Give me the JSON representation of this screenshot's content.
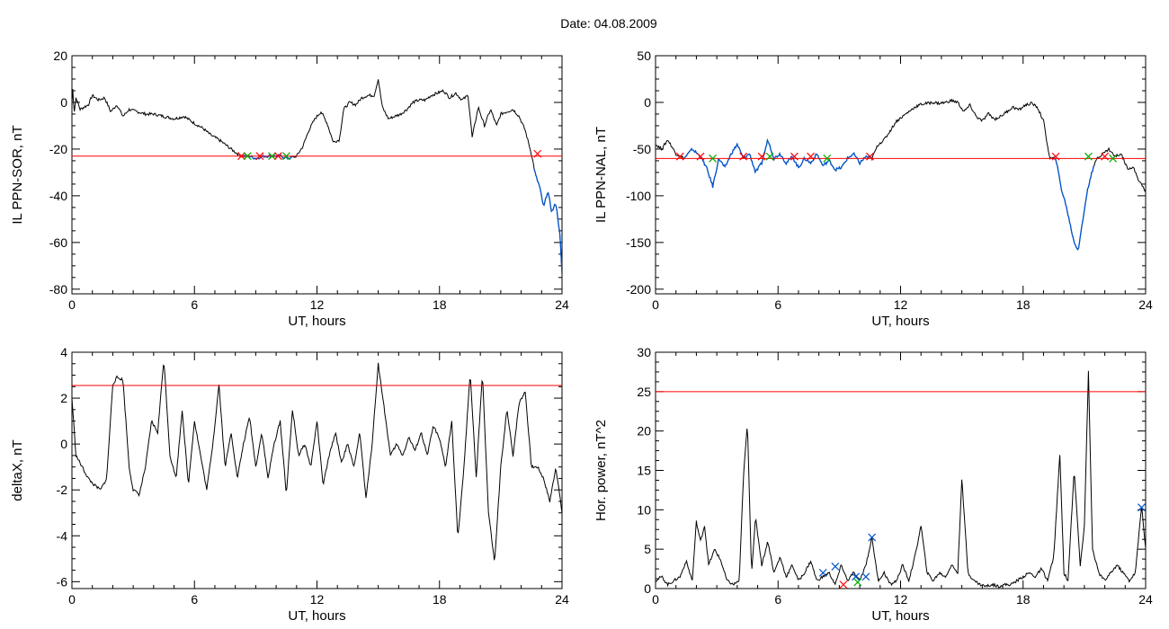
{
  "header": {
    "title": "Date:  04.08.2009"
  },
  "colors": {
    "trace": "#000000",
    "threshold": "#ff0000",
    "marker_x": "#ff0000",
    "marker_blue": "#0055cc",
    "marker_green": "#00aa00"
  },
  "chart_data": [
    {
      "type": "line",
      "title": "",
      "xlabel": "UT, hours",
      "ylabel": "IL PPN-SOR, nT",
      "xlim": [
        0,
        24
      ],
      "ylim": [
        -82,
        20
      ],
      "xticks": [
        0,
        6,
        12,
        18,
        24
      ],
      "yticks": [
        20,
        0,
        -20,
        -40,
        -60,
        -80
      ],
      "threshold": -23,
      "series": [
        {
          "x": [
            0,
            0.05,
            0.1,
            0.2,
            0.4,
            0.8,
            1.0,
            1.3,
            1.6,
            1.9,
            2.2,
            2.5,
            2.8,
            3.2,
            3.6,
            4.0,
            4.5,
            5.0,
            5.5,
            6.0,
            6.4,
            6.8,
            7.2,
            7.5,
            7.8,
            8.1,
            8.4,
            8.7,
            9.0,
            9.4,
            9.8,
            10.2,
            10.6,
            11.0,
            11.3,
            11.6,
            11.9,
            12.2,
            12.5,
            12.8,
            13.1,
            13.3,
            13.6,
            13.9,
            14.2,
            14.5,
            14.8,
            15.0,
            15.2,
            15.5,
            15.8,
            16.1,
            16.4,
            16.7,
            17.0,
            17.3,
            17.6,
            17.9,
            18.2,
            18.5,
            18.8,
            19.1,
            19.4,
            19.6,
            19.9,
            20.2,
            20.5,
            20.8,
            21.0,
            21.3,
            21.6,
            21.9,
            22.2,
            22.5,
            22.7,
            22.9,
            23.1,
            23.3,
            23.5,
            23.7,
            23.9,
            24.0
          ],
          "y": [
            0,
            7,
            -5,
            2,
            -3,
            -1,
            3,
            1,
            2,
            -4,
            -1,
            -6,
            -3,
            -4,
            -5,
            -5,
            -6,
            -7,
            -6,
            -9,
            -11,
            -14,
            -16,
            -18,
            -20,
            -22,
            -23,
            -23,
            -24,
            -23,
            -23,
            -23,
            -24,
            -23,
            -19,
            -12,
            -7,
            -4,
            -9,
            -17,
            -16,
            -3,
            0,
            -1,
            2,
            3,
            3,
            10,
            -2,
            -7,
            -6,
            -5,
            -3,
            0,
            1,
            1,
            3,
            4,
            5,
            2,
            4,
            1,
            3,
            -15,
            -2,
            -10,
            -3,
            -10,
            -5,
            -4,
            -3,
            -6,
            -12,
            -22,
            -31,
            -36,
            -45,
            -38,
            -47,
            -43,
            -57,
            -74
          ]
        }
      ],
      "highlight_segments": [
        [
          8.2,
          10.8
        ],
        [
          22.6,
          24.0
        ]
      ],
      "markers": [
        {
          "x": 8.3,
          "y": -23,
          "color": "#ff0000"
        },
        {
          "x": 8.6,
          "y": -23,
          "color": "#00aa00"
        },
        {
          "x": 9.2,
          "y": -23,
          "color": "#ff0000"
        },
        {
          "x": 9.8,
          "y": -23,
          "color": "#00aa00"
        },
        {
          "x": 10.1,
          "y": -23,
          "color": "#ff0000"
        },
        {
          "x": 10.5,
          "y": -23,
          "color": "#00aa00"
        },
        {
          "x": 22.8,
          "y": -22,
          "color": "#ff0000"
        }
      ]
    },
    {
      "type": "line",
      "title": "",
      "xlabel": "UT, hours",
      "ylabel": "IL PPN-NAL, nT",
      "xlim": [
        0,
        24
      ],
      "ylim": [
        -205,
        50
      ],
      "xticks": [
        0,
        6,
        12,
        18,
        24
      ],
      "yticks": [
        50,
        0,
        -50,
        -100,
        -150,
        -200
      ],
      "threshold": -60,
      "series": [
        {
          "x": [
            0,
            0.3,
            0.6,
            1.0,
            1.4,
            1.8,
            2.2,
            2.5,
            2.8,
            3.1,
            3.4,
            3.7,
            4.0,
            4.3,
            4.6,
            4.9,
            5.2,
            5.5,
            5.8,
            6.1,
            6.4,
            6.7,
            7.0,
            7.3,
            7.6,
            7.9,
            8.2,
            8.5,
            8.8,
            9.1,
            9.4,
            9.7,
            10.0,
            10.3,
            10.6,
            10.9,
            11.2,
            11.5,
            11.8,
            12.1,
            12.4,
            12.7,
            13.0,
            13.3,
            13.6,
            13.9,
            14.2,
            14.5,
            14.8,
            15.1,
            15.4,
            15.7,
            16.0,
            16.3,
            16.6,
            16.9,
            17.2,
            17.5,
            17.8,
            18.1,
            18.4,
            18.7,
            19.0,
            19.3,
            19.6,
            19.9,
            20.1,
            20.3,
            20.5,
            20.7,
            20.9,
            21.1,
            21.3,
            21.6,
            21.9,
            22.2,
            22.5,
            22.8,
            23.1,
            23.4,
            23.7,
            24.0
          ],
          "y": [
            -45,
            -50,
            -40,
            -55,
            -60,
            -50,
            -58,
            -70,
            -90,
            -60,
            -70,
            -55,
            -45,
            -60,
            -55,
            -75,
            -65,
            -40,
            -60,
            -55,
            -65,
            -58,
            -70,
            -60,
            -65,
            -55,
            -68,
            -62,
            -72,
            -70,
            -60,
            -55,
            -65,
            -58,
            -60,
            -45,
            -40,
            -30,
            -20,
            -15,
            -10,
            -5,
            -2,
            -1,
            0,
            -1,
            0,
            2,
            0,
            -10,
            -3,
            -15,
            -20,
            -12,
            -18,
            -15,
            -10,
            -5,
            -8,
            -3,
            -1,
            -5,
            -20,
            -60,
            -60,
            -95,
            -110,
            -130,
            -150,
            -158,
            -130,
            -100,
            -80,
            -60,
            -55,
            -50,
            -58,
            -55,
            -70,
            -70,
            -85,
            -95
          ]
        }
      ],
      "highlight_segments": [
        [
          1.4,
          10.6
        ],
        [
          19.5,
          21.5
        ]
      ],
      "markers": [
        {
          "x": 1.2,
          "y": -58,
          "color": "#ff0000"
        },
        {
          "x": 2.2,
          "y": -58,
          "color": "#ff0000"
        },
        {
          "x": 2.8,
          "y": -60,
          "color": "#00aa00"
        },
        {
          "x": 4.3,
          "y": -58,
          "color": "#ff0000"
        },
        {
          "x": 5.2,
          "y": -58,
          "color": "#ff0000"
        },
        {
          "x": 5.6,
          "y": -58,
          "color": "#00aa00"
        },
        {
          "x": 6.8,
          "y": -58,
          "color": "#ff0000"
        },
        {
          "x": 7.6,
          "y": -58,
          "color": "#ff0000"
        },
        {
          "x": 8.4,
          "y": -60,
          "color": "#00aa00"
        },
        {
          "x": 10.5,
          "y": -58,
          "color": "#ff0000"
        },
        {
          "x": 19.6,
          "y": -58,
          "color": "#ff0000"
        },
        {
          "x": 21.2,
          "y": -58,
          "color": "#00aa00"
        },
        {
          "x": 22.0,
          "y": -58,
          "color": "#ff0000"
        },
        {
          "x": 22.4,
          "y": -60,
          "color": "#00aa00"
        }
      ]
    },
    {
      "type": "line",
      "title": "",
      "xlabel": "UT, hours",
      "ylabel": "deltaX, nT",
      "xlim": [
        0,
        24
      ],
      "ylim": [
        -6.3,
        4
      ],
      "xticks": [
        0,
        6,
        12,
        18,
        24
      ],
      "yticks": [
        4,
        2,
        0,
        -2,
        -4,
        -6
      ],
      "threshold": 2.55,
      "series": [
        {
          "x": [
            0,
            0.2,
            0.5,
            0.8,
            1.1,
            1.4,
            1.7,
            2.0,
            2.2,
            2.5,
            2.8,
            3.0,
            3.3,
            3.6,
            3.9,
            4.2,
            4.5,
            4.8,
            5.1,
            5.4,
            5.7,
            6.0,
            6.3,
            6.6,
            6.9,
            7.2,
            7.5,
            7.8,
            8.1,
            8.4,
            8.7,
            9.0,
            9.3,
            9.6,
            9.9,
            10.2,
            10.5,
            10.8,
            11.1,
            11.4,
            11.7,
            12.0,
            12.3,
            12.6,
            12.9,
            13.2,
            13.5,
            13.8,
            14.1,
            14.4,
            14.7,
            15.0,
            15.3,
            15.6,
            15.9,
            16.2,
            16.5,
            16.8,
            17.1,
            17.4,
            17.7,
            18.0,
            18.3,
            18.6,
            18.9,
            19.2,
            19.5,
            19.8,
            20.1,
            20.4,
            20.7,
            21.0,
            21.3,
            21.6,
            21.9,
            22.2,
            22.5,
            22.8,
            23.1,
            23.4,
            23.7,
            24.0
          ],
          "y": [
            2.0,
            -0.5,
            -1.0,
            -1.5,
            -1.8,
            -2.0,
            -1.5,
            2.6,
            2.9,
            2.8,
            -1.0,
            -2.0,
            -2.2,
            -1.0,
            1.0,
            0.5,
            3.7,
            -0.5,
            -1.5,
            1.5,
            -1.8,
            1.0,
            -0.5,
            -2.0,
            0.0,
            2.6,
            -1.0,
            0.5,
            -1.5,
            0.0,
            1.2,
            -1.0,
            0.5,
            -1.5,
            0.0,
            1.0,
            -2.2,
            1.5,
            -0.5,
            0.0,
            -1.0,
            1.0,
            -1.8,
            -0.5,
            0.5,
            -0.8,
            0.0,
            -1.0,
            0.5,
            -2.4,
            0.0,
            3.5,
            1.5,
            -0.5,
            0.0,
            -0.5,
            0.3,
            -0.3,
            0.5,
            -0.5,
            0.8,
            0.2,
            -1.0,
            1.0,
            -4.1,
            -1.0,
            3.1,
            -1.5,
            3.1,
            -3.0,
            -5.2,
            -1.0,
            1.5,
            -0.5,
            1.8,
            2.3,
            -1.0,
            -1.0,
            -1.5,
            -2.5,
            -1.0,
            -3.0
          ]
        }
      ],
      "highlight_segments": [],
      "markers": []
    },
    {
      "type": "line",
      "title": "",
      "xlabel": "UT, hours",
      "ylabel": "Hor. power, nT^2",
      "xlim": [
        0,
        24
      ],
      "ylim": [
        0,
        30
      ],
      "xticks": [
        0,
        6,
        12,
        18,
        24
      ],
      "yticks": [
        30,
        25,
        20,
        15,
        10,
        5,
        0
      ],
      "threshold": 25,
      "series": [
        {
          "x": [
            0,
            0.3,
            0.6,
            0.9,
            1.2,
            1.5,
            1.8,
            2.0,
            2.2,
            2.4,
            2.6,
            2.9,
            3.2,
            3.5,
            3.8,
            4.1,
            4.3,
            4.5,
            4.7,
            4.9,
            5.2,
            5.5,
            5.8,
            6.1,
            6.4,
            6.7,
            7.0,
            7.3,
            7.6,
            7.9,
            8.2,
            8.5,
            8.8,
            9.1,
            9.4,
            9.7,
            10.0,
            10.3,
            10.6,
            10.9,
            11.2,
            11.5,
            11.8,
            12.1,
            12.4,
            12.7,
            13.0,
            13.3,
            13.6,
            13.9,
            14.2,
            14.5,
            14.8,
            15.0,
            15.3,
            15.6,
            15.9,
            16.2,
            16.5,
            16.8,
            17.1,
            17.4,
            17.7,
            18.0,
            18.3,
            18.6,
            18.9,
            19.2,
            19.5,
            19.8,
            20.0,
            20.2,
            20.5,
            20.8,
            21.0,
            21.2,
            21.4,
            21.7,
            22.0,
            22.3,
            22.6,
            22.9,
            23.2,
            23.5,
            23.8,
            24.0
          ],
          "y": [
            1.0,
            1.5,
            0.5,
            1.0,
            1.5,
            3.5,
            1.0,
            8.5,
            6.0,
            8.0,
            3.0,
            5.0,
            3.5,
            1.0,
            0.5,
            1.0,
            14.0,
            21.0,
            2.0,
            9.0,
            3.0,
            6.0,
            2.0,
            4.0,
            1.5,
            3.0,
            1.0,
            2.0,
            3.5,
            1.0,
            1.5,
            2.0,
            0.5,
            3.0,
            1.0,
            2.0,
            1.0,
            3.0,
            6.5,
            1.0,
            2.0,
            0.5,
            1.0,
            3.0,
            1.0,
            4.0,
            8.0,
            2.0,
            1.0,
            2.0,
            1.5,
            3.0,
            2.0,
            14.0,
            2.0,
            1.0,
            0.5,
            0.3,
            0.5,
            0.3,
            0.5,
            0.5,
            1.0,
            1.5,
            2.0,
            1.5,
            2.5,
            1.0,
            4.0,
            17.0,
            2.0,
            1.0,
            15.0,
            3.0,
            8.0,
            27.5,
            5.0,
            2.0,
            1.0,
            2.0,
            3.0,
            2.0,
            1.0,
            2.0,
            10.5,
            5.0
          ]
        }
      ],
      "highlight_segments": [],
      "markers": [
        {
          "x": 8.2,
          "y": 2.0,
          "color": "#0055cc"
        },
        {
          "x": 8.8,
          "y": 2.8,
          "color": "#0055cc"
        },
        {
          "x": 9.8,
          "y": 1.5,
          "color": "#0055cc"
        },
        {
          "x": 10.3,
          "y": 1.5,
          "color": "#0055cc"
        },
        {
          "x": 10.6,
          "y": 6.5,
          "color": "#0055cc"
        },
        {
          "x": 9.2,
          "y": 0.5,
          "color": "#ff0000"
        },
        {
          "x": 9.9,
          "y": 0.8,
          "color": "#00aa00"
        },
        {
          "x": 23.8,
          "y": 10.3,
          "color": "#0055cc"
        }
      ]
    }
  ]
}
